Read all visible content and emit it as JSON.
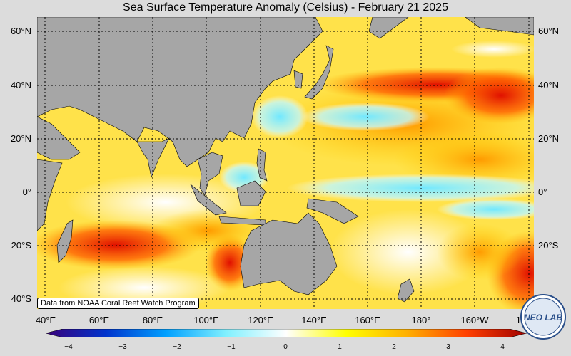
{
  "title": "Sea Surface Temperature Anomaly (Celsius) - February 21 2025",
  "lat_labels": [
    "60°N",
    "40°N",
    "20°N",
    "0°",
    "20°S",
    "40°S"
  ],
  "lon_labels": [
    "40°E",
    "60°E",
    "80°E",
    "100°E",
    "120°E",
    "140°E",
    "160°E",
    "180°",
    "160°W",
    "14"
  ],
  "credit": "Data from NOAA Coral Reef Watch Program",
  "colorbar": {
    "ticks": [
      "−4",
      "−3",
      "−2",
      "−1",
      "0",
      "1",
      "2",
      "3",
      "4"
    ],
    "colors": [
      "#3a007a",
      "#0033cc",
      "#00a0ff",
      "#80f0ff",
      "#ffffff",
      "#ffff00",
      "#ffb000",
      "#ff4000",
      "#a00000"
    ]
  },
  "logo_text": "NEO LAB",
  "colors": {
    "land": "#a6a6a6",
    "warm": "#ffb000",
    "hot": "#e01000",
    "cool": "#9ef2ff",
    "neutral": "#fff8c0"
  },
  "map_extent": {
    "lon_min": 38,
    "lon_max": 222,
    "lat_min": -43,
    "lat_max": 64
  }
}
